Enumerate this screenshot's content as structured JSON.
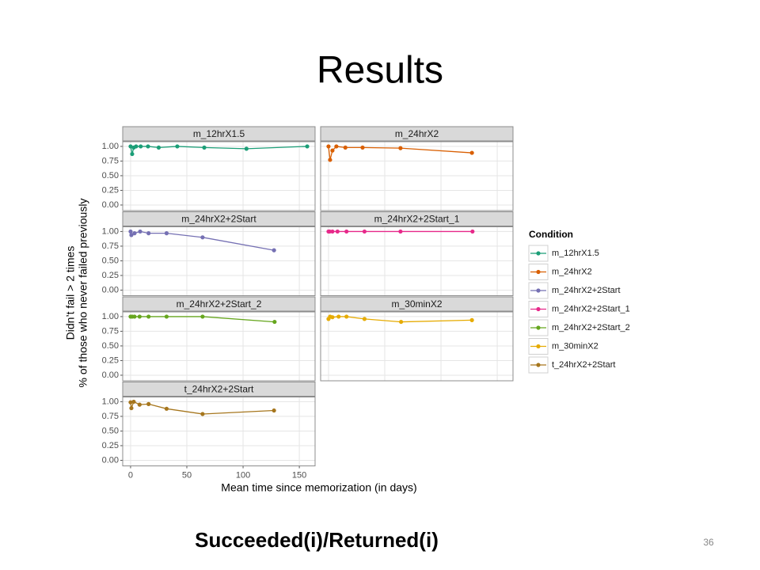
{
  "slide": {
    "title": "Results",
    "subtitle": "Succeeded(i)/Returned(i)",
    "page": "36"
  },
  "facet_axes": {
    "xlabel": "Mean time since memorization (in days)",
    "ylabel": [
      "Didn’t fail > 2 times",
      "% of those who never failed previously"
    ]
  },
  "legend": {
    "title": "Condition"
  },
  "chart_data": [
    {
      "type": "line",
      "title": "m_12hrX1.5",
      "x": [
        0,
        1.4,
        2.8,
        4.9,
        9,
        15.5,
        25,
        41.5,
        65.5,
        103,
        157
      ],
      "series": [
        {
          "name": "m_12hrX1.5",
          "color": "#1b9e77",
          "values": [
            1.0,
            0.87,
            0.98,
            1.0,
            1.0,
            1.0,
            0.98,
            1.0,
            0.98,
            0.96,
            1.0
          ]
        }
      ],
      "xlim": [
        -7,
        164
      ],
      "xticks": [
        0,
        50,
        100,
        150
      ],
      "ylim": [
        -0.095,
        1.08
      ],
      "yticks": [
        {
          "value": 0,
          "label": "0.00"
        },
        0.25,
        {
          "value": 0.5,
          "label": "0.50"
        },
        0.75,
        {
          "value": 1,
          "label": "1.00"
        }
      ],
      "grid": true
    },
    {
      "type": "line",
      "title": "m_24hrX2",
      "x": [
        0,
        1.4,
        3.5,
        7,
        15,
        30.3,
        64,
        127.5
      ],
      "series": [
        {
          "name": "m_24hrX2",
          "color": "#d95f02",
          "values": [
            1.0,
            0.77,
            0.93,
            1.0,
            0.98,
            0.98,
            0.97,
            0.89
          ]
        }
      ],
      "xlim": [
        -7,
        164
      ],
      "xticks": [
        0,
        50,
        100,
        150
      ],
      "ylim": [
        -0.095,
        1.08
      ],
      "yticks": [
        {
          "value": 0,
          "label": "0.00"
        },
        0.25,
        {
          "value": 0.5,
          "label": "0.50"
        },
        0.75,
        {
          "value": 1,
          "label": "1.00"
        }
      ],
      "grid": true
    },
    {
      "type": "line",
      "title": "m_24hrX2+2Start",
      "x": [
        0,
        0.7,
        3.5,
        8.5,
        16,
        32,
        64,
        127.5
      ],
      "series": [
        {
          "name": "m_24hrX2+2Start",
          "color": "#7570b3",
          "values": [
            1.0,
            0.94,
            0.97,
            1.0,
            0.97,
            0.97,
            0.9,
            0.68
          ]
        }
      ],
      "xlim": [
        -7,
        164
      ],
      "xticks": [
        0,
        50,
        100,
        150
      ],
      "ylim": [
        -0.095,
        1.08
      ],
      "yticks": [
        {
          "value": 0,
          "label": "0.00"
        },
        0.25,
        {
          "value": 0.5,
          "label": "0.50"
        },
        0.75,
        {
          "value": 1,
          "label": "1.00"
        }
      ],
      "grid": true
    },
    {
      "type": "line",
      "title": "m_24hrX2+2Start_1",
      "x": [
        0,
        1,
        3.5,
        8,
        16,
        32,
        64,
        128
      ],
      "series": [
        {
          "name": "m_24hrX2+2Start_1",
          "color": "#e7298a",
          "values": [
            1.0,
            1.0,
            1.0,
            1.0,
            1.0,
            1.0,
            1.0,
            1.0
          ]
        }
      ],
      "xlim": [
        -7,
        164
      ],
      "xticks": [
        0,
        50,
        100,
        150
      ],
      "ylim": [
        -0.095,
        1.08
      ],
      "yticks": [
        {
          "value": 0,
          "label": "0.00"
        },
        0.25,
        {
          "value": 0.5,
          "label": "0.50"
        },
        0.75,
        {
          "value": 1,
          "label": "1.00"
        }
      ],
      "grid": true
    },
    {
      "type": "line",
      "title": "m_24hrX2+2Start_2",
      "x": [
        0,
        1.5,
        3.5,
        8,
        16,
        32,
        64,
        128
      ],
      "series": [
        {
          "name": "m_24hrX2+2Start_2",
          "color": "#66a61e",
          "values": [
            1.0,
            1.0,
            1.0,
            1.0,
            1.0,
            1.0,
            1.0,
            0.91
          ]
        }
      ],
      "xlim": [
        -7,
        164
      ],
      "xticks": [
        0,
        50,
        100,
        150
      ],
      "ylim": [
        -0.095,
        1.08
      ],
      "yticks": [
        {
          "value": 0,
          "label": "0.00"
        },
        0.25,
        {
          "value": 0.5,
          "label": "0.50"
        },
        0.75,
        {
          "value": 1,
          "label": "1.00"
        }
      ],
      "grid": true
    },
    {
      "type": "line",
      "title": "m_30minX2",
      "x": [
        0,
        1.4,
        3.5,
        9,
        16,
        32,
        64.5,
        127.5
      ],
      "series": [
        {
          "name": "m_30minX2",
          "color": "#e6ab02",
          "values": [
            0.96,
            1.0,
            0.99,
            1.0,
            1.0,
            0.96,
            0.91,
            0.94
          ]
        }
      ],
      "xlim": [
        -7,
        164
      ],
      "xticks": [
        0,
        50,
        100,
        150
      ],
      "ylim": [
        -0.095,
        1.08
      ],
      "yticks": [
        {
          "value": 0,
          "label": "0.00"
        },
        0.25,
        {
          "value": 0.5,
          "label": "0.50"
        },
        0.75,
        {
          "value": 1,
          "label": "1.00"
        }
      ],
      "grid": true
    },
    {
      "type": "line",
      "title": "t_24hrX2+2Start",
      "x": [
        0,
        0.7,
        2.8,
        8,
        16,
        32,
        64,
        127.5
      ],
      "series": [
        {
          "name": "t_24hrX2+2Start",
          "color": "#a6761d",
          "values": [
            0.99,
            0.89,
            1.0,
            0.95,
            0.96,
            0.88,
            0.79,
            0.85
          ]
        }
      ],
      "xlim": [
        -7,
        164
      ],
      "xticks": [
        0,
        50,
        100,
        150
      ],
      "ylim": [
        -0.095,
        1.08
      ],
      "yticks": [
        {
          "value": 0,
          "label": "0.00"
        },
        0.25,
        {
          "value": 0.5,
          "label": "0.50"
        },
        0.75,
        {
          "value": 1,
          "label": "1.00"
        }
      ],
      "grid": true
    }
  ]
}
